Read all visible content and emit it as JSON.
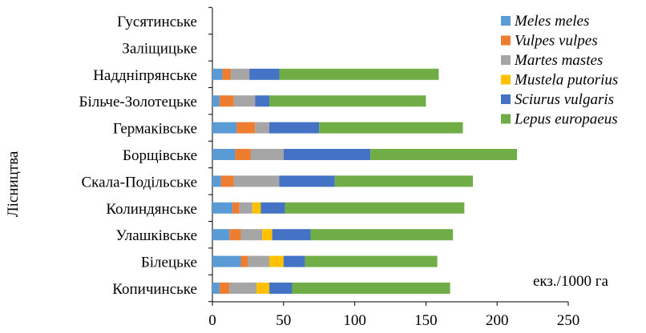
{
  "chart_data": {
    "type": "bar",
    "orientation": "horizontal",
    "stacked": true,
    "title": "",
    "xlabel": "",
    "ylabel": "Лісництва",
    "unit_label": "екз./1000 га",
    "xlim": [
      0,
      250
    ],
    "xticks": [
      0,
      50,
      100,
      150,
      200,
      250
    ],
    "grid": false,
    "legend_position": "top-right",
    "categories": [
      "Гусятинське",
      "Заліщицьке",
      "Наддніпрянське",
      "Більче-Золотецьке",
      "Гермаківське",
      "Борщівське",
      "Скала-Подільське",
      "Колиндянське",
      "Улашківське",
      "Білецьке",
      "Копичинське"
    ],
    "series": [
      {
        "name": "Meles meles",
        "color": "#5b9bd5",
        "values": [
          0,
          0,
          7,
          5,
          17,
          16,
          6,
          14,
          12,
          20,
          5
        ]
      },
      {
        "name": "Vulpes vulpes",
        "color": "#ed7d31",
        "values": [
          0,
          0,
          6,
          10,
          13,
          11,
          9,
          5,
          8,
          5,
          7
        ]
      },
      {
        "name": "Martes mastes",
        "color": "#a5a5a5",
        "values": [
          0,
          0,
          13,
          15,
          10,
          23,
          32,
          9,
          15,
          15,
          19
        ]
      },
      {
        "name": "Mustela putorius",
        "color": "#ffc000",
        "values": [
          0,
          0,
          0,
          0,
          0,
          0,
          0,
          6,
          7,
          10,
          9
        ]
      },
      {
        "name": "Sciurus vulgaris",
        "color": "#4472c4",
        "values": [
          0,
          0,
          21,
          10,
          35,
          61,
          39,
          17,
          27,
          15,
          16
        ]
      },
      {
        "name": "Lepus europaeus",
        "color": "#70ad47",
        "values": [
          0,
          0,
          112,
          110,
          101,
          103,
          97,
          126,
          100,
          93,
          111
        ]
      }
    ]
  }
}
